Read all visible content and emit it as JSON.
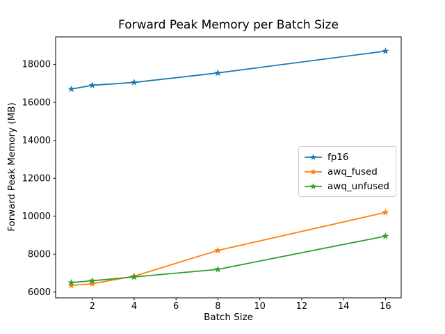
{
  "chart_data": {
    "type": "line",
    "title": "Forward Peak Memory per Batch Size",
    "xlabel": "Batch Size",
    "ylabel": "Forward Peak Memory (MB)",
    "x": [
      1,
      2,
      4,
      8,
      16
    ],
    "series": [
      {
        "name": "fp16",
        "color": "#1f77b4",
        "marker": "star",
        "values": [
          16700,
          16900,
          17050,
          17550,
          18700
        ]
      },
      {
        "name": "awq_fused",
        "color": "#ff7f0e",
        "marker": "star",
        "values": [
          6350,
          6440,
          6840,
          8200,
          10200
        ]
      },
      {
        "name": "awq_unfused",
        "color": "#2ca02c",
        "marker": "star",
        "values": [
          6500,
          6600,
          6800,
          7200,
          8950
        ]
      }
    ],
    "xticks": [
      2,
      4,
      6,
      8,
      10,
      12,
      14,
      16
    ],
    "yticks": [
      6000,
      8000,
      10000,
      12000,
      14000,
      16000,
      18000
    ],
    "xlim": [
      0.25,
      16.75
    ],
    "ylim": [
      5700,
      19450
    ],
    "grid": false,
    "legend": {
      "position": "center-right"
    },
    "axis_color": "#000000",
    "tick_label_color": "#000000"
  }
}
